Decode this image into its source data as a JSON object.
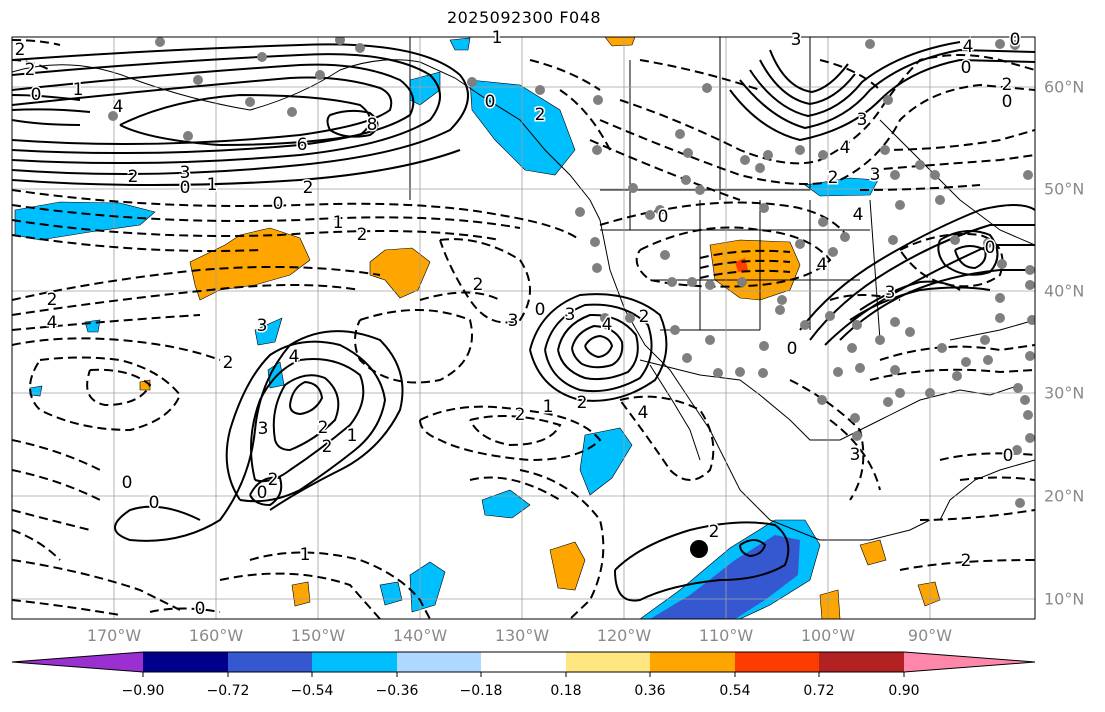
{
  "title": "2025092300 F048",
  "lon_labels": [
    "170°W",
    "160°W",
    "150°W",
    "140°W",
    "130°W",
    "120°W",
    "110°W",
    "100°W",
    "90°W"
  ],
  "lat_labels": [
    "60°N",
    "50°N",
    "40°N",
    "30°N",
    "20°N",
    "10°N"
  ],
  "colorbar": {
    "ticks": [
      "−0.90",
      "−0.72",
      "−0.54",
      "−0.36",
      "−0.18",
      "0.18",
      "0.36",
      "0.54",
      "0.72",
      "0.90"
    ],
    "colors": [
      "#9b30d0",
      "#00008b",
      "#3558d0",
      "#00bfff",
      "#add8ff",
      "#ffffff",
      "#ffe680",
      "#ffa500",
      "#ff3c00",
      "#b22222",
      "#ff88aa"
    ]
  },
  "contour_labels": [
    "2",
    "2",
    "0",
    "1",
    "4",
    "6",
    "8",
    "3",
    "2",
    "0",
    "1",
    "2",
    "0",
    "1",
    "2",
    "2",
    "4",
    "3",
    "0",
    "3",
    "4",
    "2",
    "2",
    "2",
    "1",
    "2",
    "4",
    "3",
    "2",
    "1",
    "2",
    "0",
    "0",
    "2",
    "1",
    "0",
    "4",
    "3",
    "2",
    "0",
    "2",
    "0",
    "3",
    "4",
    "2",
    "0",
    "0",
    "3",
    "4",
    "4",
    "3",
    "3",
    "4",
    "0",
    "2",
    "0",
    "0",
    "1",
    "0",
    "2",
    "0",
    "3",
    "2"
  ],
  "colors": {
    "grid": "#a0a0a0",
    "contour": "#000000",
    "land": "#000000",
    "station": "#7f7f7f"
  }
}
